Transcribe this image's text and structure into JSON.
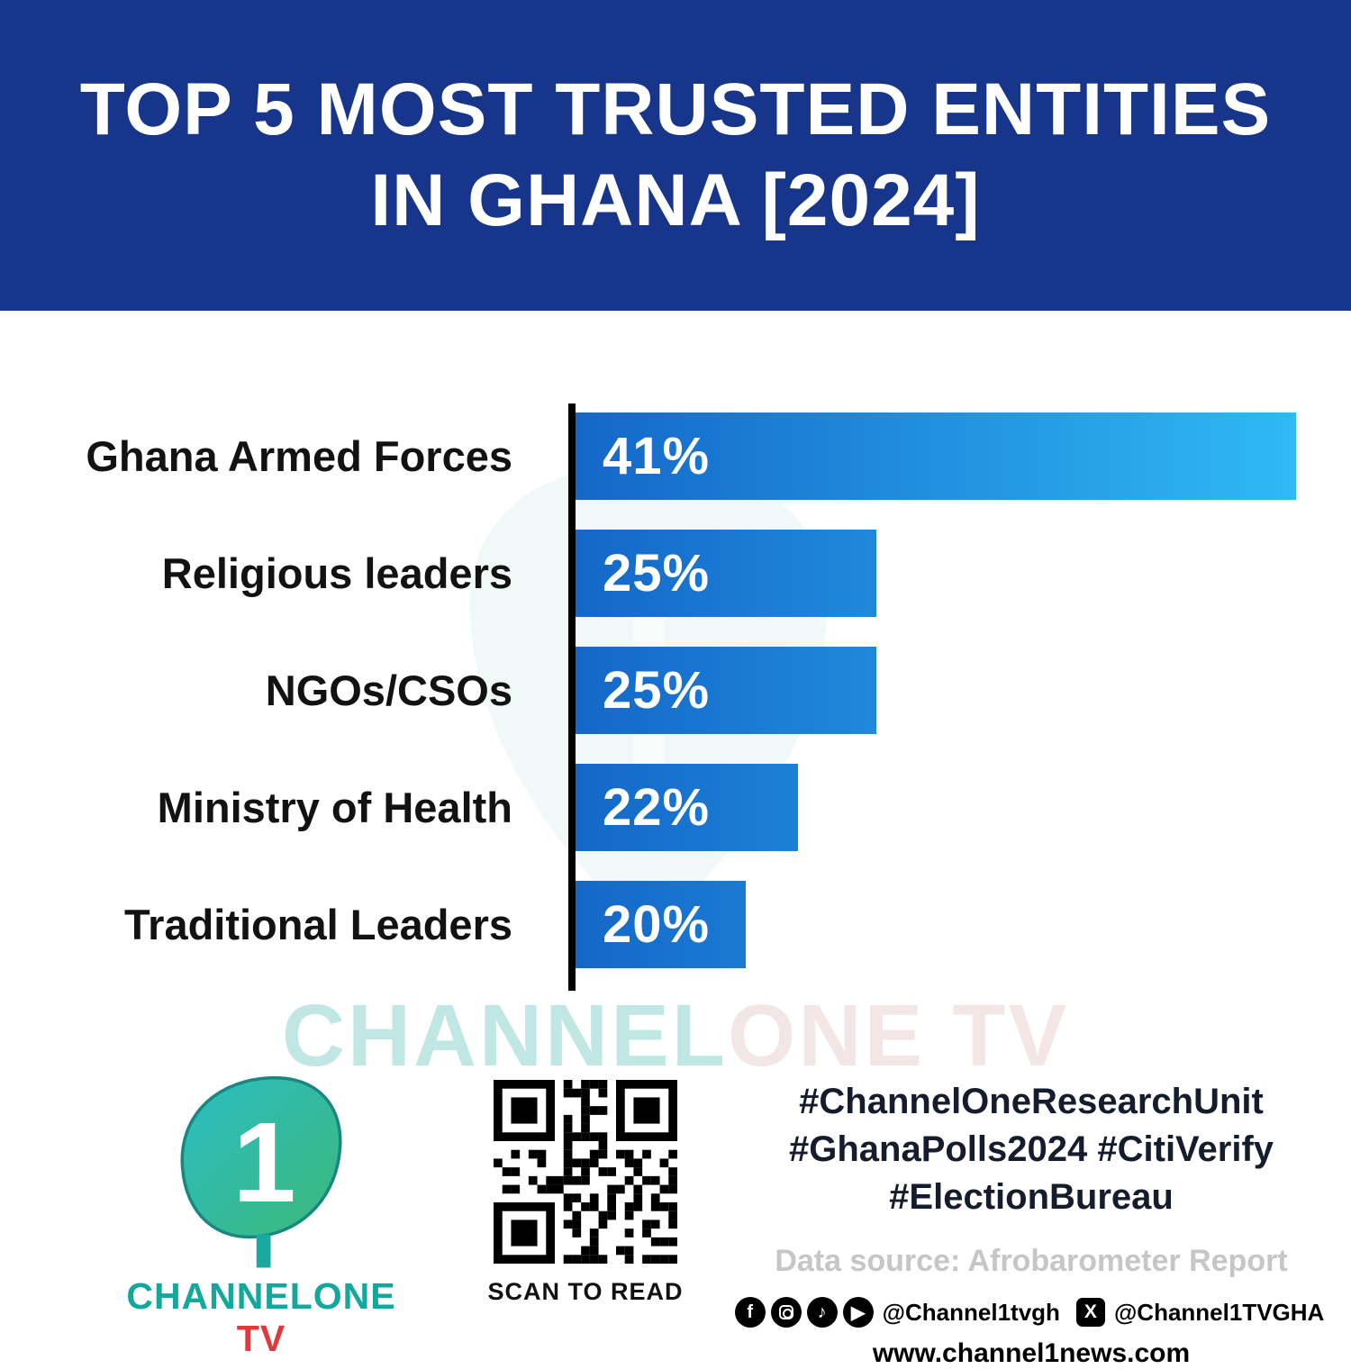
{
  "header": {
    "title_line1": "TOP 5 MOST TRUSTED ENTITIES",
    "title_line2": "IN GHANA [2024]"
  },
  "chart_data": {
    "type": "bar",
    "orientation": "horizontal",
    "title": "TOP 5 MOST TRUSTED ENTITIES IN GHANA [2024]",
    "categories": [
      "Ghana Armed Forces",
      "Religious leaders",
      "NGOs/CSOs",
      "Ministry of Health",
      "Traditional Leaders"
    ],
    "values": [
      41,
      25,
      25,
      22,
      20
    ],
    "value_labels": [
      "41%",
      "25%",
      "25%",
      "22%",
      "20%"
    ],
    "unit": "%",
    "xlim": [
      0,
      41
    ],
    "visual_x_origin": 13.5,
    "grid": false,
    "legend": false,
    "source": "Afrobarometer Report"
  },
  "colors": {
    "header_bg": "#16358B",
    "bar_gradient_start": "#1467C8",
    "bar_gradient_end": "#2FB9F5",
    "axis": "#000000",
    "logo_teal": "#14A79B",
    "logo_green": "#3CB878",
    "logo_red": "#E2373B",
    "source_gray": "#C6C6C6"
  },
  "watermark": {
    "part1": "CHANNEL",
    "part2": "ONE TV"
  },
  "icons": {
    "facebook": "f",
    "tiktok": "♪",
    "youtube": "▶",
    "x": "X"
  },
  "footer": {
    "logo_text_main": "CHANNELONE",
    "logo_text_tv": " TV",
    "logo_numeral": "1",
    "qr_caption": "SCAN TO READ",
    "hashtags": [
      "#ChannelOneResearchUnit",
      "#GhanaPolls2024 #CitiVerify",
      "#ElectionBureau"
    ],
    "data_source": "Data source: Afrobarometer Report",
    "social": {
      "handle1": "@Channel1tvgh",
      "x_handle": "@Channel1TVGHA"
    },
    "website": "www.channel1news.com"
  }
}
